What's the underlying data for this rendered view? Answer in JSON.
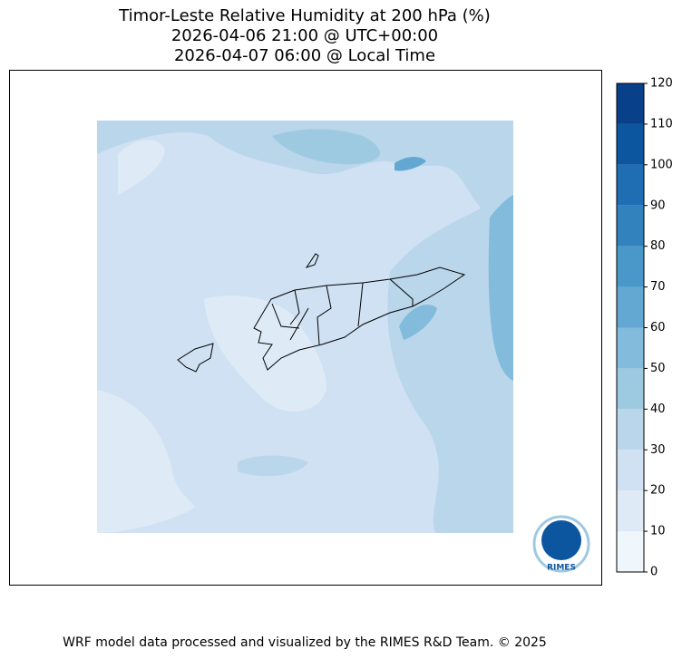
{
  "title": [
    "Timor-Leste Relative Humidity at 200 hPa (%)",
    "2026-04-06 21:00 @ UTC+00:00",
    "2026-04-07 06:00 @ Local Time"
  ],
  "colorbar": {
    "ticks": [
      0,
      10,
      20,
      30,
      40,
      50,
      60,
      70,
      80,
      90,
      100,
      110,
      120
    ],
    "colors": [
      "#eff6fc",
      "#deebf7",
      "#cfe1f2",
      "#bad6eb",
      "#9ecae1",
      "#82bbdb",
      "#63a8d3",
      "#4a98c9",
      "#3282be",
      "#1f6eb3",
      "#0c56a0",
      "#08408a"
    ]
  },
  "logo": "RIMES",
  "footer": "WRF model data processed and visualized by the RIMES R&D Team. © 2025"
}
